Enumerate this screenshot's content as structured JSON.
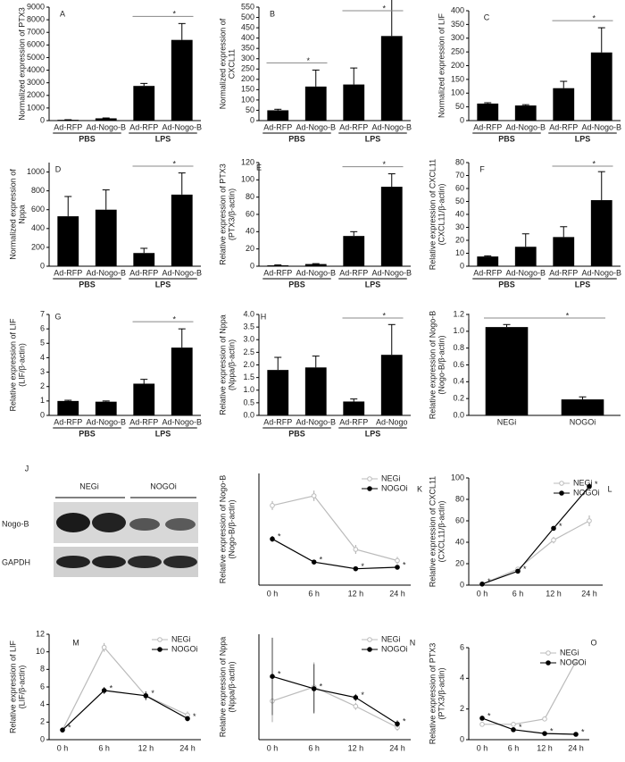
{
  "chart_data": [
    {
      "type": "bar",
      "letter": "A",
      "ylabel": [
        "Normalized expression of PTX3"
      ],
      "categories": [
        "Ad-RFP",
        "Ad-Nogo-B",
        "Ad-RFP",
        "Ad-Nogo-B"
      ],
      "groups": [
        "PBS",
        "LPS"
      ],
      "values": [
        60,
        180,
        2750,
        6400
      ],
      "errors": [
        10,
        30,
        200,
        1300
      ],
      "color": "#000000",
      "ylim": [
        0,
        9000
      ],
      "yticks": [
        0,
        1000,
        2000,
        3000,
        4000,
        5000,
        6000,
        7000,
        8000,
        9000
      ],
      "significance": [
        [
          2,
          3
        ]
      ],
      "sig_label": "*"
    },
    {
      "type": "bar",
      "letter": "B",
      "ylabel": [
        "Normalized expression of",
        "CXCL11"
      ],
      "categories": [
        "Ad-RFP",
        "Ad-Nogo-B",
        "Ad-RFP",
        "Ad-Nogo-B"
      ],
      "groups": [
        "PBS",
        "LPS"
      ],
      "values": [
        50,
        165,
        175,
        410
      ],
      "errors": [
        5,
        80,
        80,
        260
      ],
      "color": "#000000",
      "ylim": [
        0,
        550
      ],
      "yticks": [
        0,
        50,
        100,
        150,
        200,
        250,
        300,
        350,
        400,
        450,
        500,
        550
      ],
      "significance": [
        [
          0,
          1
        ],
        [
          2,
          3
        ]
      ],
      "sig_label": "*"
    },
    {
      "type": "bar",
      "letter": "C",
      "ylabel": [
        "Normalized expression of LIF"
      ],
      "categories": [
        "Ad-RFP",
        "Ad-Nogo-B",
        "Ad-RFP",
        "Ad-Nogo-B"
      ],
      "groups": [
        "PBS",
        "LPS"
      ],
      "values": [
        62,
        55,
        118,
        248
      ],
      "errors": [
        3,
        3,
        25,
        90
      ],
      "color": "#000000",
      "ylim": [
        0,
        400
      ],
      "yticks": [
        0,
        50,
        100,
        150,
        200,
        250,
        300,
        350,
        400
      ],
      "significance": [
        [
          2,
          3
        ]
      ],
      "sig_label": "*"
    },
    {
      "type": "bar",
      "letter": "D",
      "ylabel": [
        "Normalized expression of",
        "Nppa"
      ],
      "categories": [
        "Ad-RFP",
        "Ad-Nogo-B",
        "Ad-RFP",
        "Ad-Nogo-B"
      ],
      "groups": [
        "PBS",
        "LPS"
      ],
      "values": [
        530,
        600,
        140,
        760
      ],
      "errors": [
        210,
        210,
        50,
        230
      ],
      "color": "#000000",
      "ylim": [
        0,
        1100
      ],
      "yticks": [
        0,
        200,
        400,
        600,
        800,
        1000
      ],
      "significance": [
        [
          2,
          3
        ]
      ],
      "sig_label": "*"
    },
    {
      "type": "bar",
      "letter": "E",
      "ylabel": [
        "Relative expression of PTX3",
        "(PTX3/β-actin)"
      ],
      "categories": [
        "Ad-RFP",
        "Ad-Nogo-B",
        "Ad-RFP",
        "Ad-Nogo-B"
      ],
      "groups": [
        "PBS",
        "LPS"
      ],
      "values": [
        1,
        2.5,
        35,
        92
      ],
      "errors": [
        0.5,
        0.5,
        5,
        15
      ],
      "color": "#000000",
      "ylim": [
        0,
        120
      ],
      "yticks": [
        0,
        20,
        40,
        60,
        80,
        100,
        120
      ],
      "significance": [
        [
          2,
          3
        ]
      ],
      "sig_label": "*"
    },
    {
      "type": "bar",
      "letter": "F",
      "ylabel": [
        "Relative expression of CXCL11",
        "(CXCL11/β-actin)"
      ],
      "categories": [
        "Ad-RFP",
        "Ad-Nogo-B",
        "Ad-RFP",
        "Ad-Nogo-B"
      ],
      "groups": [
        "PBS",
        "LPS"
      ],
      "values": [
        7.5,
        15,
        22.5,
        51
      ],
      "errors": [
        0.5,
        10,
        8,
        22
      ],
      "color": "#000000",
      "ylim": [
        0,
        80
      ],
      "yticks": [
        0,
        10,
        20,
        30,
        40,
        50,
        60,
        70,
        80
      ],
      "significance": [
        [
          2,
          3
        ]
      ],
      "sig_label": "*"
    },
    {
      "type": "bar",
      "letter": "G",
      "ylabel": [
        "Relative expression of LIF",
        "(LIF/β-actin)"
      ],
      "categories": [
        "Ad-RFP",
        "Ad-Nogo-B",
        "Ad-RFP",
        "Ad-Nogo-B"
      ],
      "groups": [
        "PBS",
        "LPS"
      ],
      "values": [
        1,
        0.95,
        2.2,
        4.7
      ],
      "errors": [
        0.05,
        0.05,
        0.3,
        1.3
      ],
      "color": "#000000",
      "ylim": [
        0,
        7
      ],
      "yticks": [
        0,
        1,
        2,
        3,
        4,
        5,
        6,
        7
      ],
      "significance": [
        [
          2,
          3
        ]
      ],
      "sig_label": "*"
    },
    {
      "type": "bar",
      "letter": "H",
      "ylabel": [
        "Relative expression of Nppa",
        "(Nppa/β-actin)"
      ],
      "categories": [
        "Ad-RFP",
        "Ad-Nogo-B",
        "Ad-RFP",
        "Ad-Nogo"
      ],
      "groups": [
        "PBS",
        "LPS"
      ],
      "values": [
        1.8,
        1.9,
        0.55,
        2.4
      ],
      "errors": [
        0.5,
        0.45,
        0.1,
        1.2
      ],
      "color": "#000000",
      "ylim": [
        0,
        4
      ],
      "yticks": [
        {
          "value": 0,
          "label": "0.0"
        },
        {
          "value": 0.5,
          "label": "0.5"
        },
        {
          "value": 1,
          "label": "1.0"
        },
        {
          "value": 1.5,
          "label": "1.5"
        },
        {
          "value": 2,
          "label": "2.0"
        },
        {
          "value": 2.5,
          "label": "2.5"
        },
        {
          "value": 3,
          "label": "3.0"
        },
        {
          "value": 3.5,
          "label": "3.5"
        },
        {
          "value": 4,
          "label": "4.0"
        }
      ],
      "significance": [
        [
          2,
          3
        ]
      ],
      "sig_label": "*"
    },
    {
      "type": "bar",
      "letter": "I",
      "ylabel": [
        "Relative expression of Nogo-B",
        "(Nogo-B/β-actin)"
      ],
      "categories": [
        "NEGi",
        "NOGOi"
      ],
      "values": [
        1.05,
        0.19
      ],
      "errors": [
        0.03,
        0.03
      ],
      "color": "#000000",
      "ylim": [
        0,
        1.2
      ],
      "yticks": [
        {
          "value": 0,
          "label": "0.0"
        },
        {
          "value": 0.2,
          "label": "0.2"
        },
        {
          "value": 0.4,
          "label": "0.4"
        },
        {
          "value": 0.6,
          "label": "0.6"
        },
        {
          "value": 0.8,
          "label": "0.8"
        },
        {
          "value": 1,
          "label": "1.0"
        },
        {
          "value": 1.2,
          "label": "1.2"
        }
      ],
      "significance": [
        [
          0,
          1
        ]
      ],
      "sig_label": "*"
    },
    {
      "type": "blot",
      "letter": "J",
      "lanes": [
        "NEGi",
        "NOGOi"
      ],
      "rows": [
        "Nogo-B",
        "GAPDH"
      ]
    },
    {
      "type": "line",
      "letter": "K",
      "ylabel": [
        "Relative expression of Nogo-B",
        "(Nogo-B/β-actin)"
      ],
      "categories": [
        "0 h",
        "6 h",
        "12 h",
        "24 h"
      ],
      "ylim": [
        0,
        1.5
      ],
      "series": [
        {
          "name": "NEGi",
          "color": "#bbbbbb",
          "values": [
            1.07,
            1.2,
            0.48,
            0.33
          ],
          "errors": [
            0.06,
            0.07,
            0.06,
            0.05
          ]
        },
        {
          "name": "NOGOi",
          "color": "#000000",
          "values": [
            0.62,
            0.31,
            0.22,
            0.24
          ],
          "errors": [
            0.04,
            0.02,
            0.02,
            0.02
          ],
          "star": "*"
        }
      ]
    },
    {
      "type": "line",
      "letter": "L",
      "ylabel": [
        "Relative expression of CXCL11",
        "(CXCL11/β-actin)"
      ],
      "categories": [
        "0 h",
        "6 h",
        "12 h",
        "24 h"
      ],
      "ylim": [
        0,
        100
      ],
      "yticks": [
        0,
        20,
        40,
        60,
        80,
        100
      ],
      "series": [
        {
          "name": "NEGi",
          "color": "#bbbbbb",
          "values": [
            1,
            15,
            42,
            60
          ],
          "errors": [
            0.5,
            2,
            3,
            5
          ]
        },
        {
          "name": "NOGOi",
          "color": "#000000",
          "values": [
            1,
            13,
            53,
            92
          ],
          "errors": [
            0.5,
            1,
            2,
            2
          ],
          "star": "*"
        }
      ]
    },
    {
      "type": "line",
      "letter": "M",
      "ylabel": [
        "Relative expression of LIF",
        "(LIF/β-actin)"
      ],
      "categories": [
        "0 h",
        "6 h",
        "12 h",
        "24 h"
      ],
      "ylim": [
        0,
        12
      ],
      "yticks": [
        0,
        2,
        4,
        6,
        8,
        10,
        12
      ],
      "series": [
        {
          "name": "NEGi",
          "color": "#bbbbbb",
          "values": [
            1.1,
            10.5,
            5,
            2.8
          ],
          "errors": [
            0.1,
            0.5,
            0.5,
            0.4
          ]
        },
        {
          "name": "NOGOi",
          "color": "#000000",
          "values": [
            1.1,
            5.6,
            5,
            2.4
          ],
          "errors": [
            0.1,
            0.4,
            0.5,
            0.3
          ],
          "star": "*"
        }
      ]
    },
    {
      "type": "line",
      "letter": "N",
      "ylabel": [
        "Relative expression of Nppa",
        "(Nppa/β-actin)"
      ],
      "categories": [
        "0 h",
        "6 h",
        "12 h",
        "24 h"
      ],
      "ylim": [
        0,
        3
      ],
      "series": [
        {
          "name": "NEGi",
          "color": "#bbbbbb",
          "values": [
            1.1,
            1.5,
            0.95,
            0.35
          ],
          "errors": [
            0.6,
            0.7,
            0.1,
            0.1
          ]
        },
        {
          "name": "NOGOi",
          "color": "#000000",
          "values": [
            1.8,
            1.45,
            1.2,
            0.45
          ],
          "errors": [
            1.1,
            0.7,
            0.1,
            0.1
          ],
          "star": "*"
        }
      ]
    },
    {
      "type": "line",
      "letter": "O",
      "ylabel": [
        "Relative expression of PTX3",
        "(PTX3/β-actin)"
      ],
      "categories": [
        "0 h",
        "6 h",
        "12 h",
        "24 h"
      ],
      "ylim": [
        0,
        6
      ],
      "yticks": [
        0,
        2,
        4,
        6
      ],
      "series": [
        {
          "name": "NEGi",
          "color": "#bbbbbb",
          "values": [
            1.0,
            1.0,
            1.35,
            5.1
          ],
          "errors": [
            0.1,
            0.1,
            0.1,
            0.1
          ]
        },
        {
          "name": "NOGOi",
          "color": "#000000",
          "values": [
            1.4,
            0.65,
            0.4,
            0.35
          ],
          "errors": [
            0.1,
            0.05,
            0.05,
            0.05
          ],
          "star": "*"
        }
      ]
    }
  ]
}
